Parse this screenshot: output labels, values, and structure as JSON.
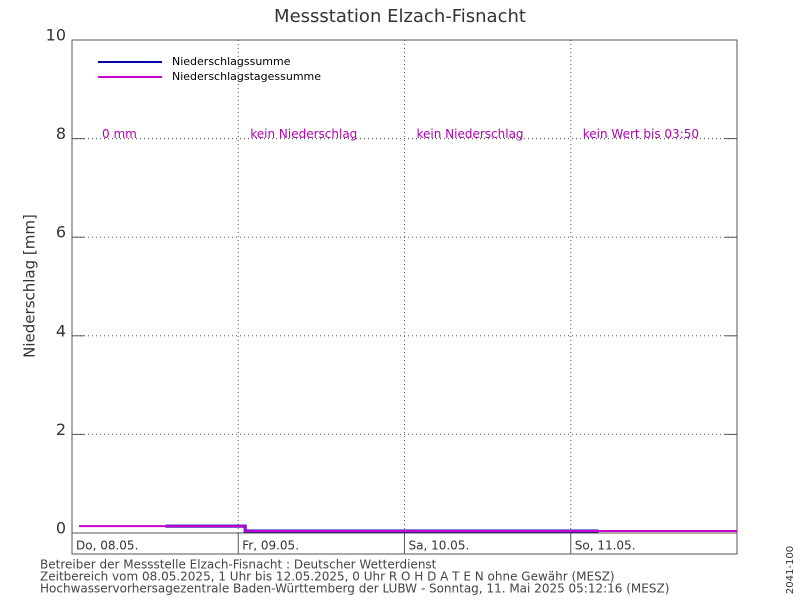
{
  "chart_data": {
    "type": "line",
    "title": "Messstation Elzach-Fisnacht",
    "ylabel": "Niederschlag [mm]",
    "xlim": [
      0,
      96
    ],
    "ylim": [
      0,
      10
    ],
    "yticks": [
      0,
      2,
      4,
      6,
      8,
      10
    ],
    "xticks": [
      {
        "value": 0,
        "label": "Do, 08.05."
      },
      {
        "value": 24,
        "label": "Fr, 09.05."
      },
      {
        "value": 48,
        "label": "Sa, 10.05."
      },
      {
        "value": 72,
        "label": "So, 11.05."
      }
    ],
    "grid": true,
    "legend": "upper left",
    "series": [
      {
        "name": "Niederschlagssumme",
        "color": "#0000aa",
        "x": [
          13.5,
          25,
          25,
          76
        ],
        "values": [
          0.1,
          0.1,
          0,
          0
        ]
      },
      {
        "name": "Niederschlagstagessumme",
        "color": "#cc00cc",
        "x": [
          1,
          25,
          25,
          96
        ],
        "values": [
          0.1,
          0.1,
          0,
          0
        ]
      }
    ],
    "annotation_level": 8,
    "annotations": [
      "0 mm",
      "kein Niederschlag",
      "kein Niederschlag",
      "kein Wert bis 03:50"
    ],
    "footer": [
      "Betreiber der Messstelle Elzach-Fisnacht : Deutscher Wetterdienst",
      "Zeitbereich vom 08.05.2025, 1 Uhr bis 12.05.2025, 0 Uhr   R O H D A T E N ohne Gewähr (MESZ)",
      "Hochwasservorhersagezentrale Baden-Württemberg der LUBW -  Sonntag, 11. Mai 2025 05:12:16 (MESZ)"
    ],
    "side_label": "2041-100"
  }
}
